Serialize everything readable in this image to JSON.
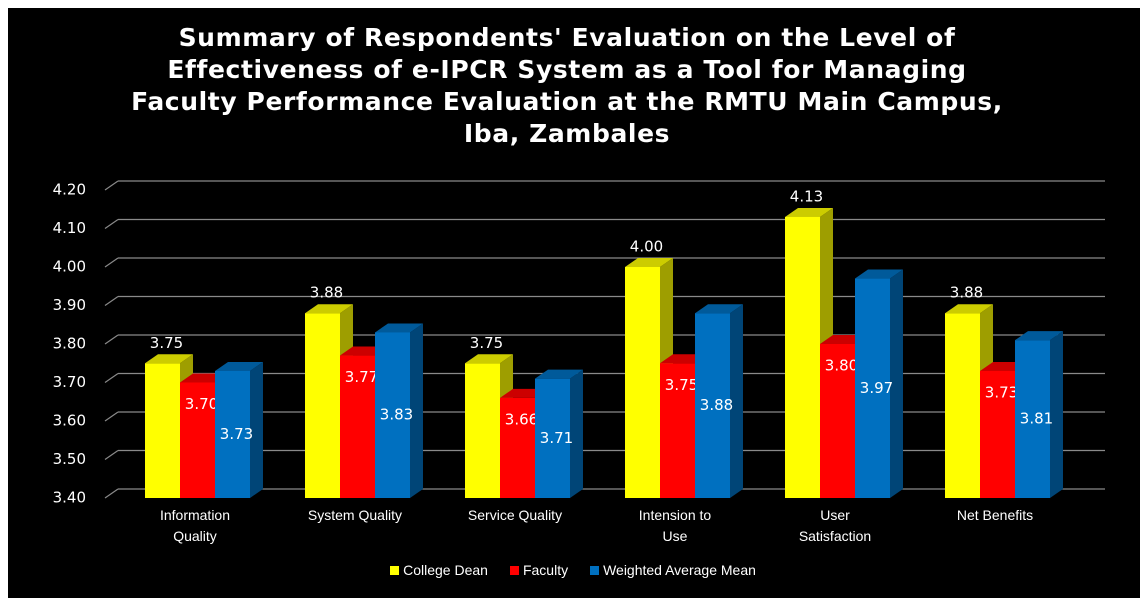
{
  "chart_data": {
    "type": "bar3d",
    "title": "Summary of Respondents' Evaluation on the Level of Effectiveness of e-IPCR System as a Tool for Managing Faculty Performance Evaluation at the RMTU Main Campus, Iba, Zambales",
    "categories": [
      "Information Quality",
      "System Quality",
      "Service Quality",
      "Intension to Use",
      "User Satisfaction",
      "Net Benefits"
    ],
    "series": [
      {
        "name": "College Dean",
        "color": "#ffff00",
        "values": [
          3.75,
          3.88,
          3.75,
          4.0,
          4.13,
          3.88
        ],
        "value_labels": [
          "3.75",
          "3.88",
          "3.75",
          "4.00",
          "4.13",
          "3.88"
        ]
      },
      {
        "name": "Faculty",
        "color": "#ff0000",
        "values": [
          3.7,
          3.77,
          3.66,
          3.75,
          3.8,
          3.73
        ],
        "value_labels": [
          "3.70",
          "3.77",
          "3.66",
          "3.75",
          "3.80",
          "3.73"
        ]
      },
      {
        "name": "Weighted Average Mean",
        "color": "#0070c0",
        "values": [
          3.73,
          3.83,
          3.71,
          3.88,
          3.97,
          3.81
        ],
        "value_labels": [
          "3.73",
          "3.83",
          "3.71",
          "3.88",
          "3.97",
          "3.81"
        ]
      }
    ],
    "ylim": [
      3.4,
      4.2
    ],
    "yticks": [
      {
        "value": 3.4,
        "label": "3.40"
      },
      {
        "value": 3.5,
        "label": "3.50"
      },
      {
        "value": 3.6,
        "label": "3.60"
      },
      {
        "value": 3.7,
        "label": "3.70"
      },
      {
        "value": 3.8,
        "label": "3.80"
      },
      {
        "value": 3.9,
        "label": "3.90"
      },
      {
        "value": 4.0,
        "label": "4.00"
      },
      {
        "value": 4.1,
        "label": "4.10"
      },
      {
        "value": 4.2,
        "label": "4.20"
      }
    ],
    "grid": true,
    "legend": "bottom"
  }
}
